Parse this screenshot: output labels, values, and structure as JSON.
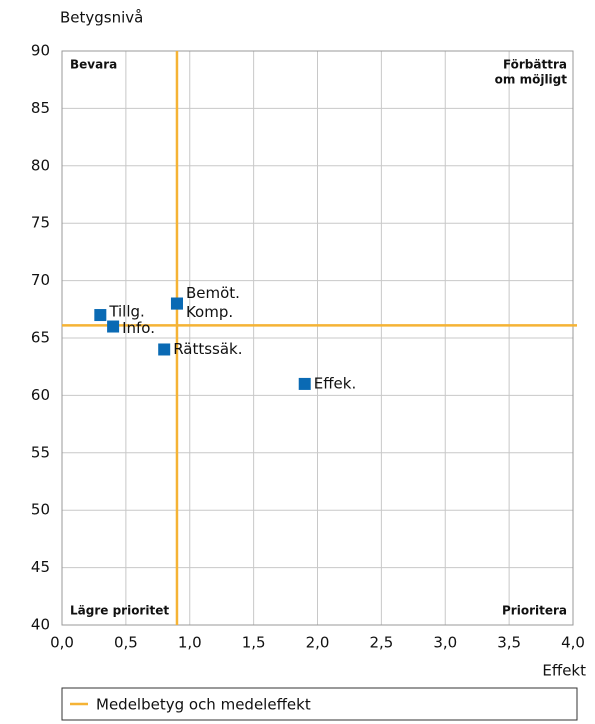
{
  "chart_data": {
    "type": "scatter",
    "ylabel": "Betygsnivå",
    "xlabel": "Effekt",
    "series": [
      {
        "color": "#0a6ab4",
        "labels": [
          "Tillg.",
          "Info.",
          "Bemöt.",
          "Komp.",
          "Rättssäk.",
          "Effek."
        ],
        "x": [
          0.3,
          0.4,
          0.9,
          0.9,
          0.8,
          1.9
        ],
        "values": [
          67,
          66,
          68,
          68,
          64,
          61
        ]
      }
    ],
    "reference_lines": {
      "name": "Medelbetyg och medeleffekt",
      "color": "#f5b335",
      "x": 0.9,
      "y": 66.1
    },
    "quadrants": {
      "top_left": [
        "Bevara"
      ],
      "top_right": [
        "Förbättra",
        "om möjligt"
      ],
      "bottom_left": [
        "Lägre prioritet"
      ],
      "bottom_right": [
        "Prioritera"
      ]
    },
    "xlim": [
      0,
      4
    ],
    "ylim": [
      40,
      90
    ],
    "xticks": [
      {
        "value": 0,
        "label": "0,0"
      },
      {
        "value": 0.5,
        "label": "0,5"
      },
      {
        "value": 1,
        "label": "1,0"
      },
      {
        "value": 1.5,
        "label": "1,5"
      },
      {
        "value": 2,
        "label": "2,0"
      },
      {
        "value": 2.5,
        "label": "2,5"
      },
      {
        "value": 3,
        "label": "3,0"
      },
      {
        "value": 3.5,
        "label": "3,5"
      },
      {
        "value": 4,
        "label": "4,0"
      }
    ],
    "yticks": [
      40,
      45,
      50,
      55,
      60,
      65,
      70,
      75,
      80,
      85,
      90
    ],
    "grid": true,
    "legend": "bottom"
  }
}
